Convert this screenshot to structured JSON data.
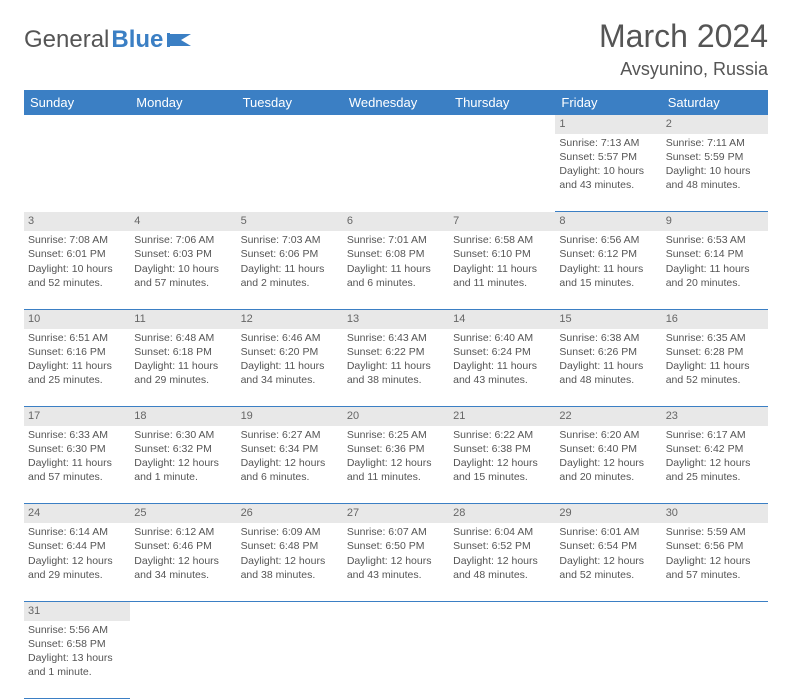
{
  "brand": {
    "part1": "General",
    "part2": "Blue"
  },
  "title": "March 2024",
  "location": "Avsyunino, Russia",
  "colors": {
    "header_bg": "#3b7fc4",
    "header_text": "#ffffff",
    "daynum_bg": "#e8e8e8",
    "border": "#3b7fc4",
    "text": "#555555",
    "background": "#ffffff"
  },
  "weekdays": [
    "Sunday",
    "Monday",
    "Tuesday",
    "Wednesday",
    "Thursday",
    "Friday",
    "Saturday"
  ],
  "weeks": [
    [
      null,
      null,
      null,
      null,
      null,
      {
        "n": "1",
        "sr": "Sunrise: 7:13 AM",
        "ss": "Sunset: 5:57 PM",
        "dl1": "Daylight: 10 hours",
        "dl2": "and 43 minutes."
      },
      {
        "n": "2",
        "sr": "Sunrise: 7:11 AM",
        "ss": "Sunset: 5:59 PM",
        "dl1": "Daylight: 10 hours",
        "dl2": "and 48 minutes."
      }
    ],
    [
      {
        "n": "3",
        "sr": "Sunrise: 7:08 AM",
        "ss": "Sunset: 6:01 PM",
        "dl1": "Daylight: 10 hours",
        "dl2": "and 52 minutes."
      },
      {
        "n": "4",
        "sr": "Sunrise: 7:06 AM",
        "ss": "Sunset: 6:03 PM",
        "dl1": "Daylight: 10 hours",
        "dl2": "and 57 minutes."
      },
      {
        "n": "5",
        "sr": "Sunrise: 7:03 AM",
        "ss": "Sunset: 6:06 PM",
        "dl1": "Daylight: 11 hours",
        "dl2": "and 2 minutes."
      },
      {
        "n": "6",
        "sr": "Sunrise: 7:01 AM",
        "ss": "Sunset: 6:08 PM",
        "dl1": "Daylight: 11 hours",
        "dl2": "and 6 minutes."
      },
      {
        "n": "7",
        "sr": "Sunrise: 6:58 AM",
        "ss": "Sunset: 6:10 PM",
        "dl1": "Daylight: 11 hours",
        "dl2": "and 11 minutes."
      },
      {
        "n": "8",
        "sr": "Sunrise: 6:56 AM",
        "ss": "Sunset: 6:12 PM",
        "dl1": "Daylight: 11 hours",
        "dl2": "and 15 minutes."
      },
      {
        "n": "9",
        "sr": "Sunrise: 6:53 AM",
        "ss": "Sunset: 6:14 PM",
        "dl1": "Daylight: 11 hours",
        "dl2": "and 20 minutes."
      }
    ],
    [
      {
        "n": "10",
        "sr": "Sunrise: 6:51 AM",
        "ss": "Sunset: 6:16 PM",
        "dl1": "Daylight: 11 hours",
        "dl2": "and 25 minutes."
      },
      {
        "n": "11",
        "sr": "Sunrise: 6:48 AM",
        "ss": "Sunset: 6:18 PM",
        "dl1": "Daylight: 11 hours",
        "dl2": "and 29 minutes."
      },
      {
        "n": "12",
        "sr": "Sunrise: 6:46 AM",
        "ss": "Sunset: 6:20 PM",
        "dl1": "Daylight: 11 hours",
        "dl2": "and 34 minutes."
      },
      {
        "n": "13",
        "sr": "Sunrise: 6:43 AM",
        "ss": "Sunset: 6:22 PM",
        "dl1": "Daylight: 11 hours",
        "dl2": "and 38 minutes."
      },
      {
        "n": "14",
        "sr": "Sunrise: 6:40 AM",
        "ss": "Sunset: 6:24 PM",
        "dl1": "Daylight: 11 hours",
        "dl2": "and 43 minutes."
      },
      {
        "n": "15",
        "sr": "Sunrise: 6:38 AM",
        "ss": "Sunset: 6:26 PM",
        "dl1": "Daylight: 11 hours",
        "dl2": "and 48 minutes."
      },
      {
        "n": "16",
        "sr": "Sunrise: 6:35 AM",
        "ss": "Sunset: 6:28 PM",
        "dl1": "Daylight: 11 hours",
        "dl2": "and 52 minutes."
      }
    ],
    [
      {
        "n": "17",
        "sr": "Sunrise: 6:33 AM",
        "ss": "Sunset: 6:30 PM",
        "dl1": "Daylight: 11 hours",
        "dl2": "and 57 minutes."
      },
      {
        "n": "18",
        "sr": "Sunrise: 6:30 AM",
        "ss": "Sunset: 6:32 PM",
        "dl1": "Daylight: 12 hours",
        "dl2": "and 1 minute."
      },
      {
        "n": "19",
        "sr": "Sunrise: 6:27 AM",
        "ss": "Sunset: 6:34 PM",
        "dl1": "Daylight: 12 hours",
        "dl2": "and 6 minutes."
      },
      {
        "n": "20",
        "sr": "Sunrise: 6:25 AM",
        "ss": "Sunset: 6:36 PM",
        "dl1": "Daylight: 12 hours",
        "dl2": "and 11 minutes."
      },
      {
        "n": "21",
        "sr": "Sunrise: 6:22 AM",
        "ss": "Sunset: 6:38 PM",
        "dl1": "Daylight: 12 hours",
        "dl2": "and 15 minutes."
      },
      {
        "n": "22",
        "sr": "Sunrise: 6:20 AM",
        "ss": "Sunset: 6:40 PM",
        "dl1": "Daylight: 12 hours",
        "dl2": "and 20 minutes."
      },
      {
        "n": "23",
        "sr": "Sunrise: 6:17 AM",
        "ss": "Sunset: 6:42 PM",
        "dl1": "Daylight: 12 hours",
        "dl2": "and 25 minutes."
      }
    ],
    [
      {
        "n": "24",
        "sr": "Sunrise: 6:14 AM",
        "ss": "Sunset: 6:44 PM",
        "dl1": "Daylight: 12 hours",
        "dl2": "and 29 minutes."
      },
      {
        "n": "25",
        "sr": "Sunrise: 6:12 AM",
        "ss": "Sunset: 6:46 PM",
        "dl1": "Daylight: 12 hours",
        "dl2": "and 34 minutes."
      },
      {
        "n": "26",
        "sr": "Sunrise: 6:09 AM",
        "ss": "Sunset: 6:48 PM",
        "dl1": "Daylight: 12 hours",
        "dl2": "and 38 minutes."
      },
      {
        "n": "27",
        "sr": "Sunrise: 6:07 AM",
        "ss": "Sunset: 6:50 PM",
        "dl1": "Daylight: 12 hours",
        "dl2": "and 43 minutes."
      },
      {
        "n": "28",
        "sr": "Sunrise: 6:04 AM",
        "ss": "Sunset: 6:52 PM",
        "dl1": "Daylight: 12 hours",
        "dl2": "and 48 minutes."
      },
      {
        "n": "29",
        "sr": "Sunrise: 6:01 AM",
        "ss": "Sunset: 6:54 PM",
        "dl1": "Daylight: 12 hours",
        "dl2": "and 52 minutes."
      },
      {
        "n": "30",
        "sr": "Sunrise: 5:59 AM",
        "ss": "Sunset: 6:56 PM",
        "dl1": "Daylight: 12 hours",
        "dl2": "and 57 minutes."
      }
    ],
    [
      {
        "n": "31",
        "sr": "Sunrise: 5:56 AM",
        "ss": "Sunset: 6:58 PM",
        "dl1": "Daylight: 13 hours",
        "dl2": "and 1 minute."
      },
      null,
      null,
      null,
      null,
      null,
      null
    ]
  ]
}
